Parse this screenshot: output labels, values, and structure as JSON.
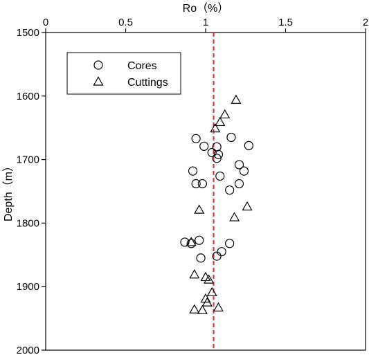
{
  "chart_data": {
    "type": "scatter",
    "xlabel": "Ro（%）",
    "ylabel": "Depth（m）",
    "xlim": [
      0,
      2
    ],
    "ylim": [
      1500,
      2000
    ],
    "y_inverted": true,
    "x_axis_position": "top",
    "x_ticks": [
      0,
      0.5,
      1,
      1.5,
      2
    ],
    "x_tick_labels": [
      "0",
      "0.5",
      "1",
      "1.5",
      "2"
    ],
    "y_ticks": [
      1500,
      1600,
      1700,
      1800,
      1900,
      2000
    ],
    "y_tick_labels": [
      "1500",
      "1600",
      "1700",
      "1800",
      "1900",
      "2000"
    ],
    "grid": false,
    "legend_position": "top-left",
    "reference_line": {
      "x": 1.05,
      "color": "#e8232a",
      "style": "dashed"
    },
    "series": [
      {
        "name": "Cores",
        "marker": "circle",
        "points": [
          [
            0.94,
            1667
          ],
          [
            0.99,
            1679
          ],
          [
            1.04,
            1689
          ],
          [
            1.07,
            1680
          ],
          [
            1.08,
            1692
          ],
          [
            1.07,
            1698
          ],
          [
            1.16,
            1665
          ],
          [
            1.27,
            1678
          ],
          [
            1.21,
            1708
          ],
          [
            1.24,
            1718
          ],
          [
            0.92,
            1718
          ],
          [
            1.09,
            1726
          ],
          [
            0.94,
            1738
          ],
          [
            0.98,
            1738
          ],
          [
            1.21,
            1738
          ],
          [
            1.15,
            1748
          ],
          [
            0.87,
            1830
          ],
          [
            0.91,
            1832
          ],
          [
            0.96,
            1827
          ],
          [
            1.15,
            1832
          ],
          [
            1.1,
            1845
          ],
          [
            1.07,
            1852
          ],
          [
            0.97,
            1855
          ]
        ]
      },
      {
        "name": "Cuttings",
        "marker": "triangle",
        "points": [
          [
            1.19,
            1606
          ],
          [
            1.12,
            1629
          ],
          [
            1.09,
            1641
          ],
          [
            1.06,
            1651
          ],
          [
            0.96,
            1779
          ],
          [
            1.26,
            1774
          ],
          [
            1.18,
            1791
          ],
          [
            0.91,
            1830
          ],
          [
            0.93,
            1881
          ],
          [
            1.0,
            1885
          ],
          [
            1.02,
            1889
          ],
          [
            1.04,
            1909
          ],
          [
            1.0,
            1919
          ],
          [
            1.01,
            1925
          ],
          [
            0.93,
            1936
          ],
          [
            0.98,
            1937
          ],
          [
            1.08,
            1933
          ]
        ]
      }
    ]
  }
}
